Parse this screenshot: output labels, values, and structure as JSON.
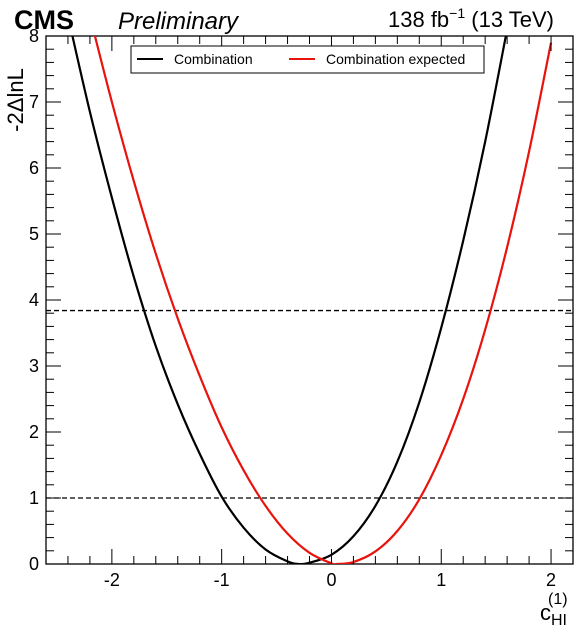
{
  "header": {
    "experiment": "CMS",
    "status": "Preliminary",
    "luminosity_value": "138 fb",
    "luminosity_exponent": "−1",
    "energy": "(13 TeV)"
  },
  "chart_data": {
    "type": "line",
    "xlabel": "c",
    "xlabel_subscript": "HI",
    "xlabel_superscript": "(1)",
    "ylabel": "-2ΔlnL",
    "xlim": [
      -2.6,
      2.2
    ],
    "ylim": [
      0,
      8
    ],
    "x_ticks": [
      -2,
      -1,
      0,
      1,
      2
    ],
    "x_tick_labels": [
      "-2",
      "-1",
      "0",
      "1",
      "2"
    ],
    "y_ticks": [
      0,
      1,
      2,
      3,
      4,
      5,
      6,
      7,
      8
    ],
    "y_tick_labels": [
      "0",
      "1",
      "2",
      "3",
      "4",
      "5",
      "6",
      "7",
      "8"
    ],
    "grid": false,
    "legend_position": "top-center",
    "reference_lines": [
      1.0,
      3.84
    ],
    "series": [
      {
        "name": "Combination",
        "color": "#000000",
        "x": [
          -2.4,
          -2.2,
          -2.0,
          -1.8,
          -1.6,
          -1.4,
          -1.2,
          -1.0,
          -0.8,
          -0.6,
          -0.4,
          -0.3,
          -0.2,
          0.0,
          0.2,
          0.4,
          0.6,
          0.8,
          1.0,
          1.2,
          1.4,
          1.6
        ],
        "y": [
          8.3,
          6.85,
          5.55,
          4.35,
          3.3,
          2.42,
          1.67,
          1.02,
          0.55,
          0.22,
          0.04,
          0.0,
          0.02,
          0.14,
          0.42,
          0.88,
          1.55,
          2.45,
          3.58,
          4.9,
          6.4,
          8.1
        ]
      },
      {
        "name": "Combination expected",
        "color": "#e8130d",
        "x": [
          -2.2,
          -2.0,
          -1.8,
          -1.6,
          -1.4,
          -1.2,
          -1.0,
          -0.8,
          -0.6,
          -0.4,
          -0.2,
          0.0,
          0.05,
          0.2,
          0.4,
          0.6,
          0.8,
          1.0,
          1.2,
          1.4,
          1.6,
          1.8,
          2.0
        ],
        "y": [
          8.3,
          7.0,
          5.8,
          4.7,
          3.72,
          2.85,
          2.07,
          1.42,
          0.88,
          0.46,
          0.17,
          0.01,
          0.0,
          0.03,
          0.19,
          0.5,
          0.98,
          1.65,
          2.5,
          3.55,
          4.8,
          6.25,
          7.9
        ]
      }
    ]
  }
}
